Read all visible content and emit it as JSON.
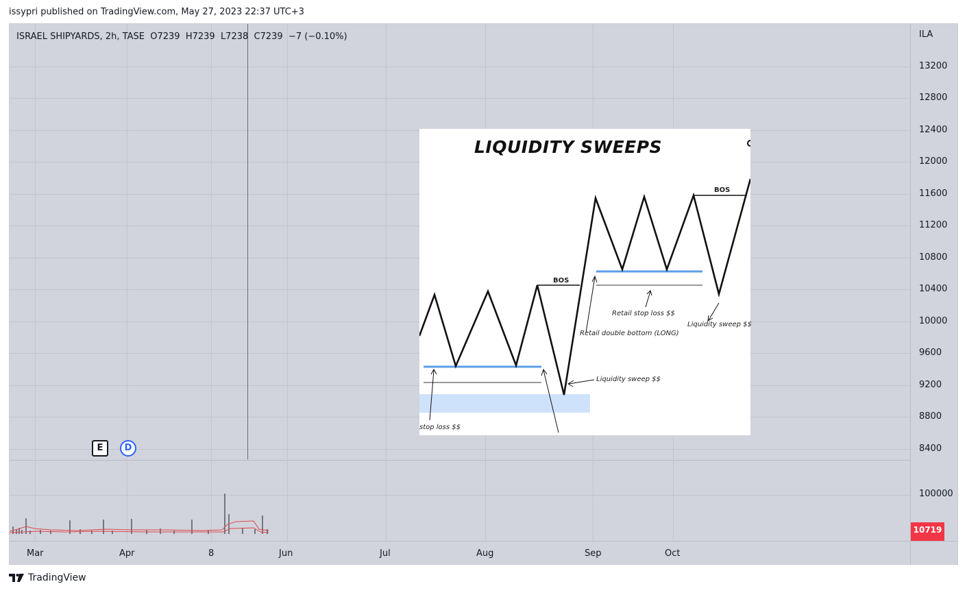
{
  "header": {
    "publish_line": "issypri published on TradingView.com, May 27, 2023 22:37 UTC+3"
  },
  "legend": {
    "symbol": "ISRAEL SHIPYARDS, 2h, TASE",
    "open": "O7239",
    "high": "H7239",
    "low": "L7238",
    "close": "C7239",
    "change": "−7 (−0.10%)"
  },
  "price_axis": {
    "currency": "ILA",
    "ticks": [
      "13200",
      "12800",
      "12400",
      "12000",
      "11600",
      "11200",
      "10800",
      "10400",
      "10000",
      "9600",
      "9200",
      "8800",
      "8400"
    ],
    "volume_tick": "100000",
    "last_volume": "10719"
  },
  "time_axis": {
    "labels": [
      "Mar",
      "Apr",
      "8",
      "Jun",
      "Jul",
      "Aug",
      "Sep",
      "Oct"
    ]
  },
  "events": {
    "earnings": "E",
    "dividend": "D"
  },
  "inset": {
    "title": "LIQUIDITY SWEEPS",
    "bos_left": "BOS",
    "bos_right": "BOS",
    "retail_stop_loss": "Retail stop loss $$",
    "retail_double_bottom": "Retail double bottom (LONG)",
    "liquidity_sweep_right": "Liquidity sweep $$",
    "liquidity_sweep_mid": "Liquidity sweep $$",
    "stop_loss": "stop loss $$"
  },
  "footer": {
    "brand": "TradingView"
  },
  "colors": {
    "background": "#d1d4dc",
    "last_price_badge": "#f23645",
    "volume_ma": "#e0474c",
    "dividend_badge": "#2962ff",
    "inset_level_blue": "#5b9ee8",
    "inset_zone": "#cfe2fb"
  }
}
